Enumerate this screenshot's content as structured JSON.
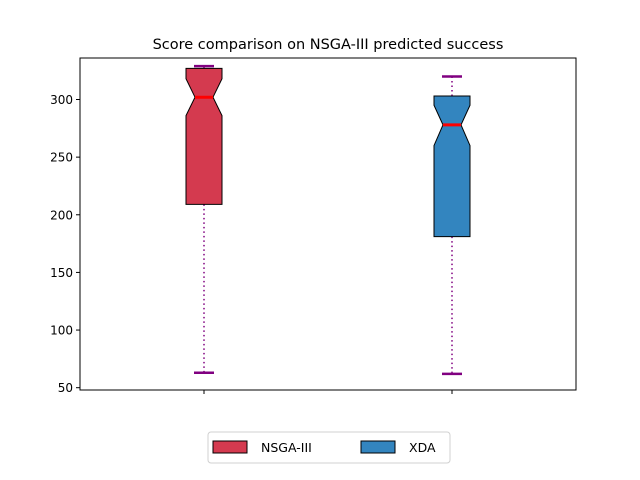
{
  "chart_data": {
    "type": "boxplot",
    "title": "Score comparison on NSGA-III predicted success",
    "xlabel": "",
    "ylabel": "",
    "ylim": [
      48,
      336
    ],
    "yticks": [
      50,
      100,
      150,
      200,
      250,
      300
    ],
    "notched": true,
    "whisker_style": "dotted",
    "whisker_color": "#800080",
    "median_color": "#ff0000",
    "grid": false,
    "legend_position": "bottom-center",
    "series": [
      {
        "name": "NSGA-III",
        "color": "#d43a4f",
        "whisker_low": 63,
        "q1": 209,
        "median": 302,
        "q3": 327,
        "whisker_high": 329,
        "notch_low": 286,
        "notch_high": 318
      },
      {
        "name": "XDA",
        "color": "#3385bf",
        "whisker_low": 62,
        "q1": 181,
        "median": 278,
        "q3": 303,
        "whisker_high": 320,
        "notch_low": 260,
        "notch_high": 295
      }
    ]
  }
}
